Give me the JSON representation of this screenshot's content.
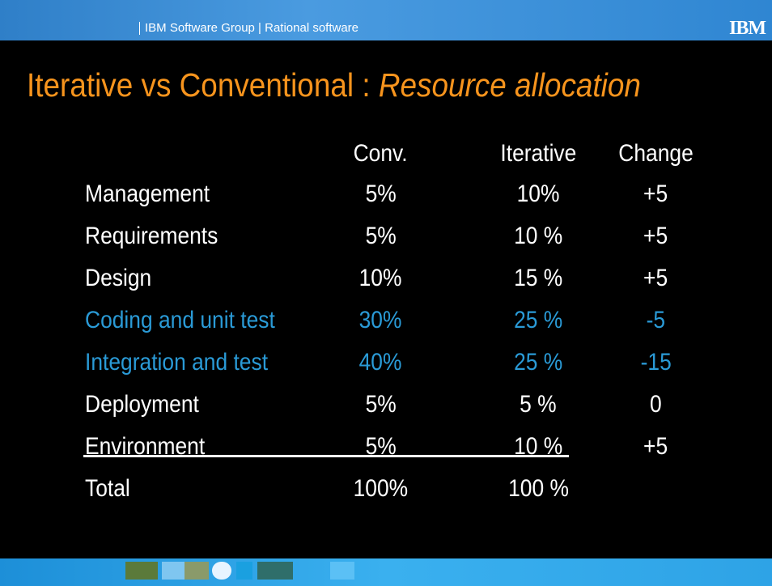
{
  "header": {
    "text": "IBM Software Group | Rational software",
    "logo": "IBM"
  },
  "title": {
    "main": "Iterative vs Conventional : ",
    "emphasis": "Resource allocation"
  },
  "table": {
    "columns": [
      "Conv.",
      "Iterative",
      "Change"
    ],
    "rows": [
      [
        "Management",
        "5%",
        "10%",
        "+5"
      ],
      [
        "Requirements",
        "5%",
        "10 %",
        "+5"
      ],
      [
        "Design",
        "10%",
        "15 %",
        "+5"
      ],
      [
        "Coding and unit test",
        "30%",
        "25 %",
        "-5"
      ],
      [
        "Integration and test",
        "40%",
        "25 %",
        "-15"
      ],
      [
        "Deployment",
        "5%",
        "5 %",
        "0"
      ],
      [
        "Environment",
        "5%",
        "10 %",
        "+5"
      ],
      [
        "Total",
        "100%",
        "100 %",
        ""
      ]
    ]
  }
}
